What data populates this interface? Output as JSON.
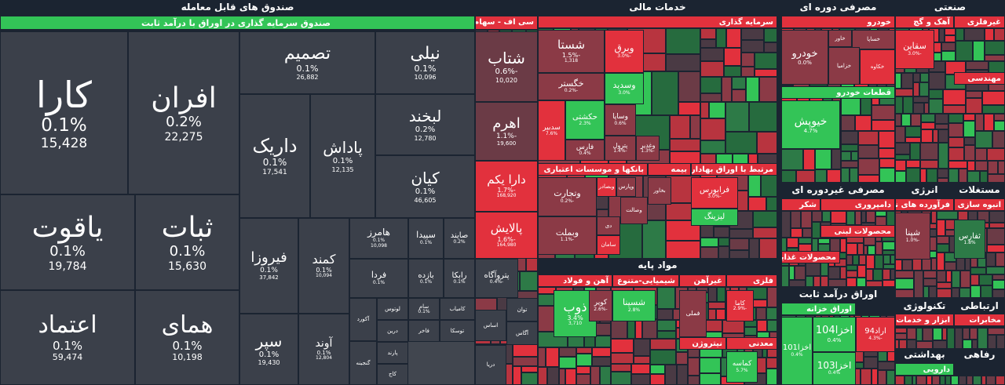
{
  "sections": [
    {
      "title": "صندوق های قابل معامله",
      "groups": [
        {
          "title": "صندوق سرمایه گذاری در اوراق با درآمد ثابت",
          "tiles": [
            {
              "name": "کارا",
              "change": "0.1%",
              "volume": "15,428"
            },
            {
              "name": "افران",
              "change": "0.2%",
              "volume": "22,275"
            },
            {
              "name": "یاقوت",
              "change": "0.1%",
              "volume": "19,784"
            },
            {
              "name": "ثبات",
              "change": "0.1%",
              "volume": "15,630"
            },
            {
              "name": "اعتماد",
              "change": "0.1%",
              "volume": "59,474"
            },
            {
              "name": "همای",
              "change": "0.1%",
              "volume": "10,198"
            },
            {
              "name": "تصمیم",
              "change": "0.1%",
              "volume": "26,882"
            },
            {
              "name": "نیلی",
              "change": "0.1%",
              "volume": "10,096"
            },
            {
              "name": "داریک",
              "change": "0.1%",
              "volume": "17,541"
            },
            {
              "name": "پاداش",
              "change": "0.1%",
              "volume": "12,135"
            },
            {
              "name": "لبخند",
              "change": "0.2%",
              "volume": "12,780"
            },
            {
              "name": "کیان",
              "change": "0.1%",
              "volume": "46,605"
            },
            {
              "name": "فیروزا",
              "change": "0.1%",
              "volume": "37,842"
            },
            {
              "name": "کمند",
              "change": "0.1%",
              "volume": "10,094"
            },
            {
              "name": "سپر",
              "change": "0.1%",
              "volume": "19,430"
            },
            {
              "name": "آوند",
              "change": "0.1%",
              "volume": "12,804"
            },
            {
              "name": "هامرز",
              "change": "0.1%",
              "volume": "10,098"
            },
            {
              "name": "سپیدا",
              "change": "0.1%"
            },
            {
              "name": "صایند",
              "change": "0.2%"
            },
            {
              "name": "فردا",
              "change": "0.1%"
            },
            {
              "name": "بازده",
              "change": "0.1%"
            },
            {
              "name": "رابکا",
              "change": "0.1%"
            },
            {
              "name": "لوتوس"
            },
            {
              "name": "سام",
              "change": "0.1%"
            },
            {
              "name": "کامیاب"
            },
            {
              "name": "آکورد"
            },
            {
              "name": "درین"
            },
            {
              "name": "فاخر"
            },
            {
              "name": "توسکا"
            },
            {
              "name": "پارند"
            },
            {
              "name": "گنجینه"
            },
            {
              "name": "کاج"
            }
          ]
        }
      ]
    },
    {
      "groups": [
        {
          "title": "سی اف - سهام",
          "tiles": [
            {
              "name": "شتاب",
              "change": "-0.6%",
              "volume": "10,020"
            },
            {
              "name": "اهرم",
              "change": "-1.1%",
              "volume": "19,600"
            },
            {
              "name": "دارا یکم",
              "change": "-1.7%",
              "volume": "168,920"
            },
            {
              "name": "پالایش",
              "change": "-1.6%",
              "volume": "164,980"
            },
            {
              "name": "پتروآگاه",
              "change": "-0.4%"
            },
            {
              "name": "توان"
            },
            {
              "name": "اساس"
            },
            {
              "name": "آگاس"
            },
            {
              "name": "دریا"
            }
          ]
        }
      ]
    },
    {
      "title": "خدمات مالی",
      "groups": [
        {
          "title": "سرمایه گذاری",
          "tiles": [
            {
              "name": "شستا",
              "change": "-1.5%",
              "volume": "1,318"
            },
            {
              "name": "وبرق",
              "change": "-3.0%"
            },
            {
              "name": "وسدید",
              "change": "3.0%"
            },
            {
              "name": "خگستر",
              "change": "-0.2%"
            },
            {
              "name": "حکشتی",
              "change": "2.3%"
            },
            {
              "name": "وساپا",
              "change": "0.6%"
            },
            {
              "name": "سدبیر",
              "change": "7.6%"
            },
            {
              "name": "فارس",
              "change": "0.4%"
            },
            {
              "name": "پترول",
              "change": "-1.4%"
            },
            {
              "name": "وغدیر",
              "change": "-1.3%"
            }
          ]
        },
        {
          "title": "بانکها و موسسات اعتباری",
          "tiles": [
            {
              "name": "وتجارت",
              "change": "-0.2%"
            },
            {
              "name": "وبملت",
              "change": "-1.1%"
            },
            {
              "name": "وبصادر"
            },
            {
              "name": "وپارس"
            },
            {
              "name": "دی"
            },
            {
              "name": "وصالت"
            },
            {
              "name": "سامان"
            }
          ]
        },
        {
          "title": "بیمه",
          "tiles": [
            {
              "name": "بخاور"
            }
          ]
        },
        {
          "title": "مرتبط با اوراق بهادار",
          "tiles": [
            {
              "name": "فرابورس",
              "change": "-3.0%"
            },
            {
              "name": "لیزینگ"
            }
          ]
        }
      ]
    },
    {
      "title": "مواد پایه",
      "groups": [
        {
          "title": "آهن و فولاد",
          "tiles": [
            {
              "name": "ذوب",
              "change": "3.4%",
              "volume": "3,710"
            },
            {
              "name": "کویر",
              "change": "-2.6%"
            }
          ]
        },
        {
          "title": "شیمیایی-متنوع",
          "tiles": [
            {
              "name": "شسینا",
              "change": "2.8%"
            }
          ]
        },
        {
          "title": "غیرآهن",
          "tiles": [
            {
              "name": "فملی"
            }
          ]
        },
        {
          "title": "فلزی",
          "tiles": [
            {
              "name": "کاما",
              "change": "-2.9%"
            }
          ]
        },
        {
          "title": "نیتروژن",
          "tiles": []
        },
        {
          "title": "معدنی",
          "tiles": [
            {
              "name": "کماسه",
              "change": "5.7%"
            }
          ]
        }
      ]
    },
    {
      "title": "مصرفی دوره ای",
      "groups": [
        {
          "title": "خودرو",
          "tiles": [
            {
              "name": "خودرو",
              "change": "0.0%"
            },
            {
              "name": "خاور"
            },
            {
              "name": "خساپا"
            },
            {
              "name": "خزامیا"
            },
            {
              "name": "خکاوه"
            }
          ]
        },
        {
          "title": "قطعات خودرو",
          "tiles": [
            {
              "name": "خیوپش",
              "change": "4.7%"
            }
          ]
        }
      ]
    },
    {
      "title": "مصرفی غیردوره ای",
      "groups": [
        {
          "title": "شکر",
          "tiles": []
        },
        {
          "title": "دامپروری",
          "tiles": []
        },
        {
          "title": "محصولات لبنی",
          "tiles": []
        },
        {
          "title": "محصولات غذایی",
          "tiles": []
        }
      ]
    },
    {
      "title": "اوراق درآمد ثابت",
      "groups": [
        {
          "title": "اوراق خزانه",
          "tiles": [
            {
              "name": "اخزا104",
              "change": "0.4%"
            },
            {
              "name": "اخزا101",
              "change": "0.4%"
            },
            {
              "name": "اخزا103",
              "change": "0.4%"
            },
            {
              "name": "اراد94",
              "change": "-4.3%"
            }
          ]
        }
      ]
    },
    {
      "title": "صنعتی",
      "groups": [
        {
          "title": "آهک و گچ",
          "tiles": [
            {
              "name": "سقاین",
              "change": "-3.0%"
            }
          ]
        },
        {
          "title": "غیرفلزی",
          "tiles": []
        },
        {
          "title": "مهندسی",
          "tiles": []
        }
      ]
    },
    {
      "title": "انرژی",
      "groups": [
        {
          "title": "فرآورده های نفتی",
          "tiles": [
            {
              "name": "شپنا",
              "change": "-1.0%"
            }
          ]
        }
      ]
    },
    {
      "title": "مستغلات",
      "groups": [
        {
          "title": "انبوه سازی و مستغلات",
          "tiles": [
            {
              "name": "ثفارس",
              "change": "1.8%"
            }
          ]
        }
      ]
    },
    {
      "title": "تکنولوژی",
      "groups": [
        {
          "title": "ابزار و خدمات",
          "tiles": []
        }
      ]
    },
    {
      "title": "ارتباطی",
      "groups": [
        {
          "title": "مخابرات",
          "tiles": []
        }
      ]
    },
    {
      "title": "بهداشتی",
      "groups": [
        {
          "title": "دارویی",
          "tiles": []
        }
      ]
    },
    {
      "title": "رفاهی",
      "groups": []
    }
  ]
}
